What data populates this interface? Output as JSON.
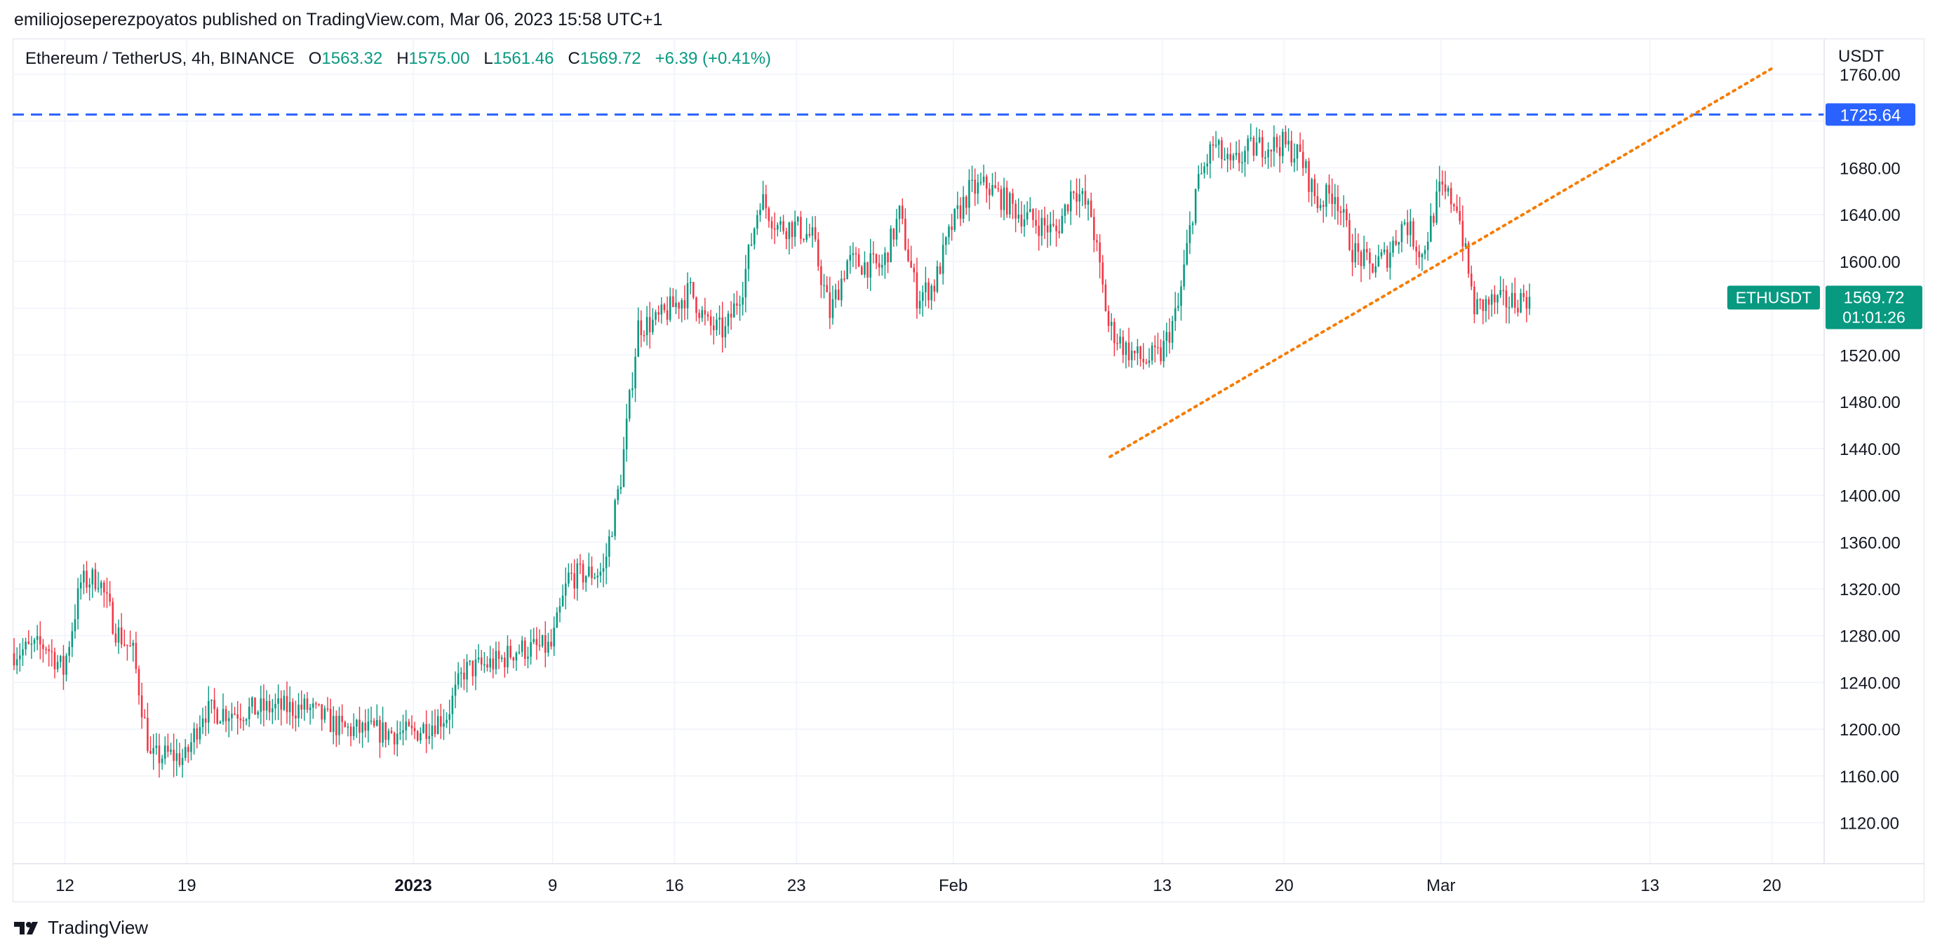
{
  "header": {
    "published": "emiliojoseperezpoyatos published on TradingView.com, Mar 06, 2023 15:58 UTC+1"
  },
  "legend": {
    "symbol": "Ethereum / TetherUS, 4h, BINANCE",
    "o_label": "O",
    "o_value": "1563.32",
    "h_label": "H",
    "h_value": "1575.00",
    "l_label": "L",
    "l_value": "1561.46",
    "c_label": "C",
    "c_value": "1569.72",
    "change": "+6.39 (+0.41%)"
  },
  "footer": {
    "brand": "TradingView",
    "logo_icon": "tradingview-logo-icon"
  },
  "colors": {
    "up": "#089981",
    "down": "#f23645",
    "horizontal_line": "#2962ff",
    "trendline": "#f57c00",
    "grid": "#f0f3fa",
    "axis_text": "#131722"
  },
  "chart_data": {
    "type": "candlestick",
    "symbol": "ETHUSDT",
    "currency": "USDT",
    "ylim": [
      1085,
      1790
    ],
    "y_ticks": [
      1120,
      1160,
      1200,
      1240,
      1280,
      1320,
      1360,
      1400,
      1440,
      1480,
      1520,
      1560,
      1600,
      1640,
      1680,
      1720,
      1760
    ],
    "y_tick_labels": [
      "1120.00",
      "1160.00",
      "1200.00",
      "1240.00",
      "1280.00",
      "1320.00",
      "1360.00",
      "1400.00",
      "1440.00",
      "1480.00",
      "1520.00",
      "",
      "1600.00",
      "1640.00",
      "1680.00",
      "",
      "1760.00"
    ],
    "x_range": [
      "2022-12-09",
      "2023-03-23"
    ],
    "x_ticks": [
      {
        "date": "2022-12-12",
        "label": "12",
        "bold": false
      },
      {
        "date": "2022-12-19",
        "label": "19",
        "bold": false
      },
      {
        "date": "2023-01-01",
        "label": "2023",
        "bold": true
      },
      {
        "date": "2023-01-09",
        "label": "9",
        "bold": false
      },
      {
        "date": "2023-01-16",
        "label": "16",
        "bold": false
      },
      {
        "date": "2023-01-23",
        "label": "23",
        "bold": false
      },
      {
        "date": "2023-02-01",
        "label": "Feb",
        "bold": false
      },
      {
        "date": "2023-02-13",
        "label": "13",
        "bold": false
      },
      {
        "date": "2023-02-20",
        "label": "20",
        "bold": false
      },
      {
        "date": "2023-03-01",
        "label": "Mar",
        "bold": false
      },
      {
        "date": "2023-03-13",
        "label": "13",
        "bold": false
      },
      {
        "date": "2023-03-20",
        "label": "20",
        "bold": false
      }
    ],
    "price_points": [
      {
        "date": "2022-12-09",
        "close": 1265
      },
      {
        "date": "2022-12-11",
        "close": 1272
      },
      {
        "date": "2022-12-12",
        "close": 1250
      },
      {
        "date": "2022-12-13",
        "close": 1325
      },
      {
        "date": "2022-12-14",
        "close": 1330
      },
      {
        "date": "2022-12-15",
        "close": 1285
      },
      {
        "date": "2022-12-16",
        "close": 1265
      },
      {
        "date": "2022-12-17",
        "close": 1175
      },
      {
        "date": "2022-12-18",
        "close": 1178
      },
      {
        "date": "2022-12-19",
        "close": 1175
      },
      {
        "date": "2022-12-20",
        "close": 1215
      },
      {
        "date": "2022-12-22",
        "close": 1215
      },
      {
        "date": "2022-12-24",
        "close": 1218
      },
      {
        "date": "2022-12-26",
        "close": 1218
      },
      {
        "date": "2022-12-28",
        "close": 1200
      },
      {
        "date": "2022-12-30",
        "close": 1198
      },
      {
        "date": "2023-01-01",
        "close": 1196
      },
      {
        "date": "2023-01-03",
        "close": 1212
      },
      {
        "date": "2023-01-04",
        "close": 1250
      },
      {
        "date": "2023-01-06",
        "close": 1258
      },
      {
        "date": "2023-01-07",
        "close": 1268
      },
      {
        "date": "2023-01-09",
        "close": 1270
      },
      {
        "date": "2023-01-10",
        "close": 1330
      },
      {
        "date": "2023-01-12",
        "close": 1335
      },
      {
        "date": "2023-01-13",
        "close": 1415
      },
      {
        "date": "2023-01-14",
        "close": 1545
      },
      {
        "date": "2023-01-15",
        "close": 1548
      },
      {
        "date": "2023-01-17",
        "close": 1575
      },
      {
        "date": "2023-01-18",
        "close": 1545
      },
      {
        "date": "2023-01-19",
        "close": 1540
      },
      {
        "date": "2023-01-20",
        "close": 1580
      },
      {
        "date": "2023-01-21",
        "close": 1655
      },
      {
        "date": "2023-01-22",
        "close": 1630
      },
      {
        "date": "2023-01-23",
        "close": 1630
      },
      {
        "date": "2023-01-24",
        "close": 1620
      },
      {
        "date": "2023-01-25",
        "close": 1555
      },
      {
        "date": "2023-01-26",
        "close": 1600
      },
      {
        "date": "2023-01-28",
        "close": 1595
      },
      {
        "date": "2023-01-29",
        "close": 1640
      },
      {
        "date": "2023-01-30",
        "close": 1570
      },
      {
        "date": "2023-01-31",
        "close": 1580
      },
      {
        "date": "2023-02-01",
        "close": 1630
      },
      {
        "date": "2023-02-02",
        "close": 1660
      },
      {
        "date": "2023-02-03",
        "close": 1665
      },
      {
        "date": "2023-02-05",
        "close": 1640
      },
      {
        "date": "2023-02-07",
        "close": 1625
      },
      {
        "date": "2023-02-08",
        "close": 1665
      },
      {
        "date": "2023-02-09",
        "close": 1640
      },
      {
        "date": "2023-02-10",
        "close": 1545
      },
      {
        "date": "2023-02-11",
        "close": 1525
      },
      {
        "date": "2023-02-12",
        "close": 1515
      },
      {
        "date": "2023-02-13",
        "close": 1520
      },
      {
        "date": "2023-02-14",
        "close": 1560
      },
      {
        "date": "2023-02-15",
        "close": 1660
      },
      {
        "date": "2023-02-16",
        "close": 1700
      },
      {
        "date": "2023-02-17",
        "close": 1680
      },
      {
        "date": "2023-02-18",
        "close": 1695
      },
      {
        "date": "2023-02-19",
        "close": 1700
      },
      {
        "date": "2023-02-20",
        "close": 1700
      },
      {
        "date": "2023-02-21",
        "close": 1690
      },
      {
        "date": "2023-02-22",
        "close": 1650
      },
      {
        "date": "2023-02-23",
        "close": 1660
      },
      {
        "date": "2023-02-24",
        "close": 1610
      },
      {
        "date": "2023-02-25",
        "close": 1595
      },
      {
        "date": "2023-02-26",
        "close": 1605
      },
      {
        "date": "2023-02-27",
        "close": 1635
      },
      {
        "date": "2023-02-28",
        "close": 1605
      },
      {
        "date": "2023-03-01",
        "close": 1660
      },
      {
        "date": "2023-03-02",
        "close": 1650
      },
      {
        "date": "2023-03-03",
        "close": 1560
      },
      {
        "date": "2023-03-04",
        "close": 1565
      },
      {
        "date": "2023-03-05",
        "close": 1565
      },
      {
        "date": "2023-03-06",
        "close": 1569.72
      }
    ],
    "horizontal_line": {
      "price": 1725.64,
      "label": "1725.64"
    },
    "trendline": {
      "start": {
        "date": "2023-02-10",
        "price": 1433
      },
      "end": {
        "date": "2023-03-20",
        "price": 1765
      }
    },
    "last_price": {
      "symbol_label": "ETHUSDT",
      "price": 1569.72,
      "price_label": "1569.72",
      "countdown": "01:01:26"
    }
  }
}
